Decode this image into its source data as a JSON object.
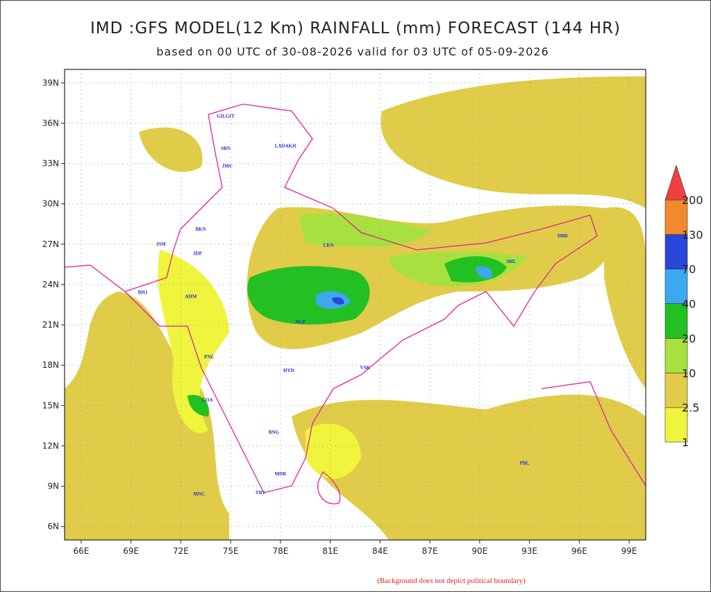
{
  "header": {
    "title": "IMD :GFS MODEL(12 Km) RAINFALL (mm) FORECAST (144 HR)",
    "subtitle": "based on 00 UTC of 30-08-2026 valid for 03 UTC of 05-09-2026"
  },
  "map": {
    "xlim": [
      65,
      100
    ],
    "ylim": [
      5,
      40
    ],
    "xticks": [
      {
        "value": 66,
        "label": "66E"
      },
      {
        "value": 69,
        "label": "69E"
      },
      {
        "value": 72,
        "label": "72E"
      },
      {
        "value": 75,
        "label": "75E"
      },
      {
        "value": 78,
        "label": "78E"
      },
      {
        "value": 81,
        "label": "81E"
      },
      {
        "value": 84,
        "label": "84E"
      },
      {
        "value": 87,
        "label": "87E"
      },
      {
        "value": 90,
        "label": "90E"
      },
      {
        "value": 93,
        "label": "93E"
      },
      {
        "value": 96,
        "label": "96E"
      },
      {
        "value": 99,
        "label": "99E"
      }
    ],
    "yticks": [
      {
        "value": 39,
        "label": "39N"
      },
      {
        "value": 36,
        "label": "36N"
      },
      {
        "value": 33,
        "label": "33N"
      },
      {
        "value": 30,
        "label": "30N"
      },
      {
        "value": 27,
        "label": "27N"
      },
      {
        "value": 24,
        "label": "24N"
      },
      {
        "value": 21,
        "label": "21N"
      },
      {
        "value": 18,
        "label": "18N"
      },
      {
        "value": 15,
        "label": "15N"
      },
      {
        "value": 12,
        "label": "12N"
      },
      {
        "value": 9,
        "label": "9N"
      },
      {
        "value": 6,
        "label": "6N"
      }
    ],
    "grid": true,
    "stations": [
      {
        "name": "GILGIT",
        "lon": 74.7,
        "lat": 36.4
      },
      {
        "name": "SRN",
        "lon": 74.7,
        "lat": 34.0
      },
      {
        "name": "LADAKH",
        "lon": 78.3,
        "lat": 34.2
      },
      {
        "name": "JMU",
        "lon": 74.8,
        "lat": 32.7
      },
      {
        "name": "JSM",
        "lon": 70.8,
        "lat": 26.9
      },
      {
        "name": "BKN",
        "lon": 73.2,
        "lat": 28.0
      },
      {
        "name": "JDP",
        "lon": 73.0,
        "lat": 26.2
      },
      {
        "name": "AHM",
        "lon": 72.6,
        "lat": 23.0
      },
      {
        "name": "BHJ",
        "lon": 69.7,
        "lat": 23.3
      },
      {
        "name": "PNE",
        "lon": 73.7,
        "lat": 18.5
      },
      {
        "name": "GOA",
        "lon": 73.6,
        "lat": 15.3
      },
      {
        "name": "BNG",
        "lon": 77.6,
        "lat": 12.9
      },
      {
        "name": "MDR",
        "lon": 78.0,
        "lat": 9.8
      },
      {
        "name": "HYD",
        "lon": 78.5,
        "lat": 17.5
      },
      {
        "name": "VSK",
        "lon": 83.1,
        "lat": 17.7
      },
      {
        "name": "NGP",
        "lon": 79.2,
        "lat": 21.1
      },
      {
        "name": "LKN",
        "lon": 80.9,
        "lat": 26.8
      },
      {
        "name": "SHL",
        "lon": 91.9,
        "lat": 25.6
      },
      {
        "name": "DBR",
        "lon": 95.0,
        "lat": 27.5
      },
      {
        "name": "PBL",
        "lon": 92.7,
        "lat": 10.6
      },
      {
        "name": "MNC",
        "lon": 73.1,
        "lat": 8.3
      },
      {
        "name": "TRV",
        "lon": 76.8,
        "lat": 8.4
      }
    ]
  },
  "legend": {
    "levels": [
      1,
      2.5,
      10,
      20,
      40,
      70,
      130,
      200
    ],
    "colors": [
      "#eef53c",
      "#e0cc48",
      "#a8e040",
      "#22c022",
      "#3ca8f0",
      "#2846d8",
      "#f08a2c",
      "#f04040"
    ]
  },
  "footnote": "(Background does not depict political boundary)"
}
